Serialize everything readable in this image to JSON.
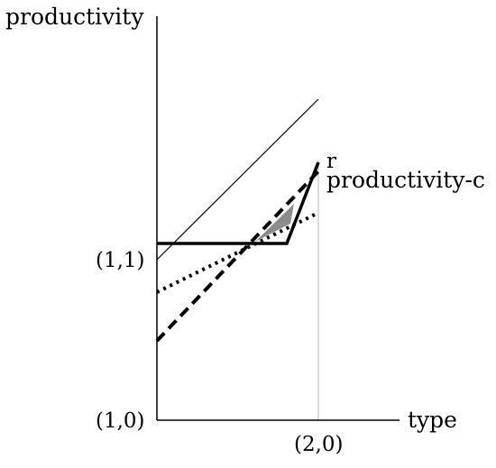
{
  "labels": {
    "y_axis": "productivity",
    "x_axis": "type",
    "origin": "(1,0)",
    "y_tick": "(1,1)",
    "x_tick": "(2,0)",
    "r": "r",
    "productivity_c": "productivity-c"
  },
  "colors": {
    "ink": "#000000",
    "shade": "#8c8c8c",
    "guide": "#b8b8b8"
  }
}
